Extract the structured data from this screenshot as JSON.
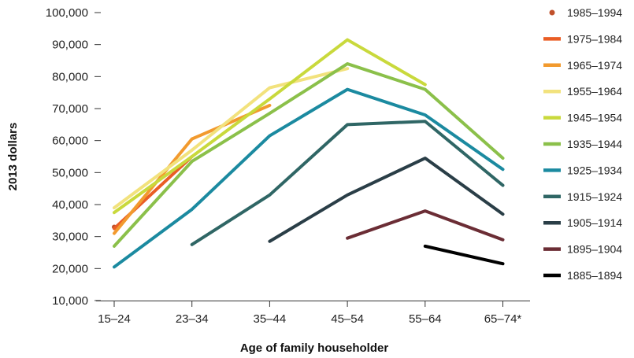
{
  "chart_data": {
    "type": "line",
    "title": "",
    "xlabel": "Age of family householder",
    "ylabel": "2013 dollars",
    "categories": [
      "15–24",
      "23–34",
      "35–44",
      "45–54",
      "55–64",
      "65–74*"
    ],
    "yticks": [
      "10,000",
      "20,000",
      "30,000",
      "40,000",
      "50,000",
      "60,000",
      "70,000",
      "80,000",
      "90,000",
      "100,000"
    ],
    "ylim": [
      10000,
      100000
    ],
    "grid": false,
    "legend_position": "right",
    "series": [
      {
        "name": "1985–1994",
        "color": "#c0502b",
        "marker": "dot",
        "values": [
          33000,
          null,
          null,
          null,
          null,
          null
        ]
      },
      {
        "name": "1975–1984",
        "color": "#e95d25",
        "values": [
          32500,
          55000,
          null,
          null,
          null,
          null
        ]
      },
      {
        "name": "1965–1974",
        "color": "#f29a2e",
        "values": [
          31000,
          60500,
          71000,
          null,
          null,
          null
        ]
      },
      {
        "name": "1955–1964",
        "color": "#f2e27d",
        "values": [
          39000,
          57000,
          76500,
          82500,
          null,
          null
        ]
      },
      {
        "name": "1945–1954",
        "color": "#c9d93c",
        "values": [
          37500,
          55000,
          73000,
          91500,
          77500,
          null
        ]
      },
      {
        "name": "1935–1944",
        "color": "#8bc04a",
        "values": [
          27000,
          53500,
          68500,
          84000,
          76000,
          54500
        ]
      },
      {
        "name": "1925–1934",
        "color": "#1b8aa0",
        "values": [
          20500,
          38500,
          61500,
          76000,
          68000,
          51000
        ]
      },
      {
        "name": "1915–1924",
        "color": "#2f6665",
        "values": [
          null,
          27500,
          43000,
          65000,
          66000,
          46000
        ]
      },
      {
        "name": "1905–1914",
        "color": "#2a3e47",
        "values": [
          null,
          null,
          28500,
          43000,
          54500,
          37000
        ]
      },
      {
        "name": "1895–1904",
        "color": "#6b2d35",
        "values": [
          null,
          null,
          null,
          29500,
          38000,
          29000
        ]
      },
      {
        "name": "1885–1894",
        "color": "#000000",
        "values": [
          null,
          null,
          null,
          null,
          27000,
          21500
        ]
      }
    ]
  }
}
